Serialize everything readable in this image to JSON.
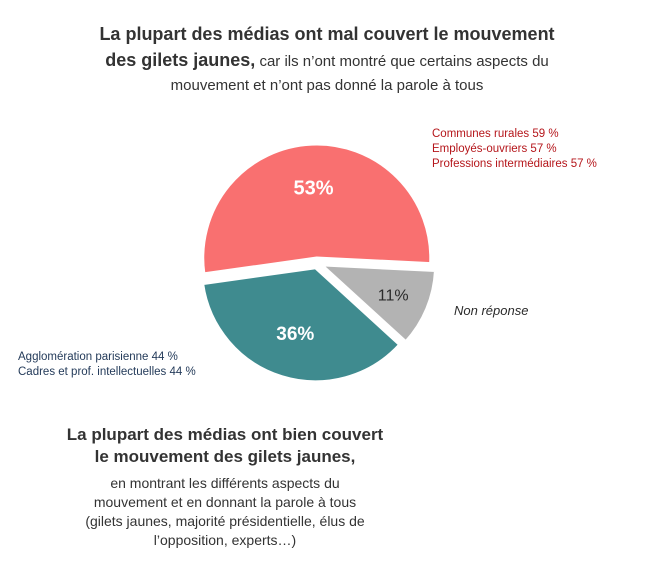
{
  "top_title": {
    "lead_line1": "La plupart des médias ont mal couvert le mouvement",
    "lead_line2": "des gilets jaunes,",
    "rest_line2": " car ils n’ont montré que certains aspects du",
    "rest_line3": "mouvement et n’ont pas donné la parole à tous"
  },
  "notes_red": [
    "Communes rurales 59 %",
    "Employés-ouvriers 57 %",
    "Professions intermédiaires 57 %"
  ],
  "notes_teal": [
    "Agglomération parisienne 44 %",
    "Cadres et prof. intellectuelles 44 %"
  ],
  "non_reponse_label": "Non réponse",
  "bottom": {
    "lead_line1": "La plupart des médias ont bien couvert",
    "lead_line2": "le mouvement des gilets jaunes,",
    "rest_line1": "en montrant les différents aspects du",
    "rest_line2": "mouvement et en donnant la parole à tous",
    "rest_line3": "(gilets jaunes, majorité présidentielle, élus de",
    "rest_line4": "l’opposition, experts…)"
  },
  "chart_data": {
    "type": "pie",
    "slices": [
      {
        "value": 53,
        "label": "53%",
        "color": "#f97070"
      },
      {
        "value": 11,
        "label": "11%",
        "color": "#b3b3b3"
      },
      {
        "value": 36,
        "label": "36%",
        "color": "#3f8b8f"
      }
    ]
  }
}
